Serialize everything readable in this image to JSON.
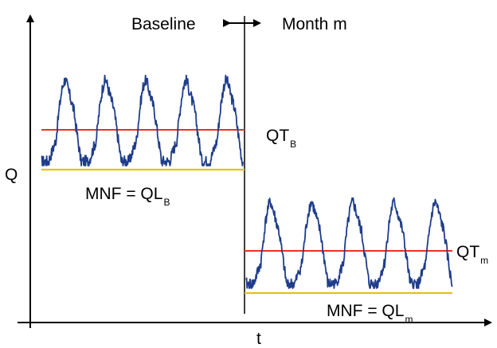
{
  "labels": {
    "baseline": "Baseline",
    "month": "Month m",
    "y_axis": "Q",
    "x_axis": "t",
    "qt_baseline": "QT",
    "qt_baseline_sub": "B",
    "mnf_baseline": "MNF = QL",
    "mnf_baseline_sub": "B",
    "qt_month": "QT",
    "qt_month_sub": "m",
    "mnf_month": "MNF = QL",
    "mnf_month_sub": "m"
  },
  "colors": {
    "flow": "#1f3d8a",
    "average_line": "#e8341c",
    "minimum_line": "#e3c21a",
    "axis": "#000000"
  }
}
